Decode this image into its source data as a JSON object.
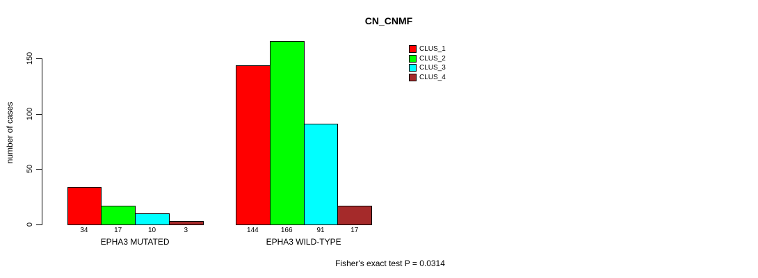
{
  "chart_data": {
    "type": "bar",
    "title": "CN_CNMF",
    "xlabel": "",
    "ylabel": "number of cases",
    "ylim": [
      0,
      150
    ],
    "yticks": [
      0,
      50,
      100,
      150
    ],
    "grid": false,
    "categories": [
      "EPHA3 MUTATED",
      "EPHA3 WILD-TYPE"
    ],
    "series": [
      {
        "name": "CLUS_1",
        "color": "#ff0000",
        "values": [
          34,
          144
        ]
      },
      {
        "name": "CLUS_2",
        "color": "#00ff00",
        "values": [
          17,
          166
        ]
      },
      {
        "name": "CLUS_3",
        "color": "#00ffff",
        "values": [
          10,
          91
        ]
      },
      {
        "name": "CLUS_4",
        "color": "#a52a2a",
        "values": [
          3,
          17
        ]
      }
    ],
    "bar_value_labels_shown": true,
    "legend_position": "top-right",
    "annotation": "Fisher's exact test P = 0.0314"
  }
}
